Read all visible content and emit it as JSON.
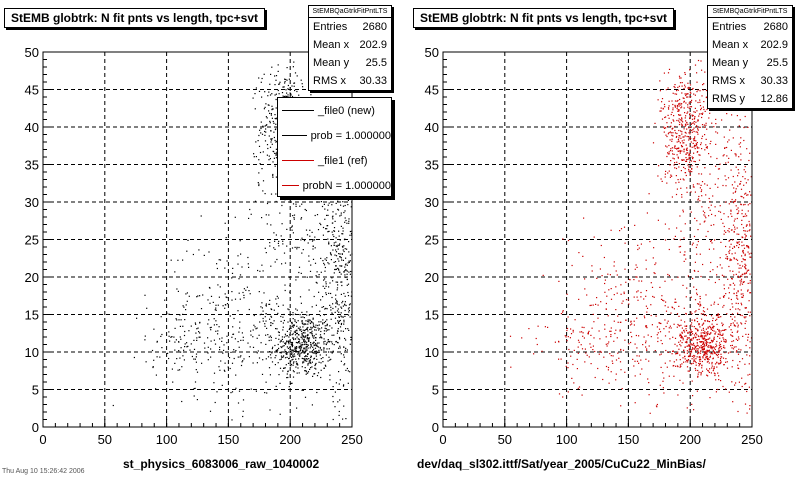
{
  "footer_note": "Thu Aug 10 15:26:42 2006",
  "chart_data": [
    {
      "type": "scatter",
      "title": "StEMB globtrk: N fit pnts vs length, tpc+svt",
      "xlabel": "st_physics_6083006_raw_1040002",
      "ylabel": "",
      "xlim": [
        0,
        250
      ],
      "ylim": [
        0,
        50
      ],
      "x_ticks": [
        "0",
        "50",
        "100",
        "150",
        "200",
        "250"
      ],
      "y_ticks": [
        "0",
        "5",
        "10",
        "15",
        "20",
        "25",
        "30",
        "35",
        "40",
        "45",
        "50"
      ],
      "grid": true,
      "marker_color": "#000000",
      "stats": {
        "name": "StEMBQaGtrkFitPntLTS",
        "rows": [
          {
            "label": "Entries",
            "value": "2680"
          },
          {
            "label": "Mean x",
            "value": "202.9"
          },
          {
            "label": "Mean y",
            "value": "25.5"
          },
          {
            "label": "RMS x",
            "value": "30.33"
          }
        ]
      },
      "legend": [
        {
          "label": "_file0 (new)",
          "color": "#000000"
        },
        {
          "label": "prob = 1.000000",
          "color": "#000000"
        },
        {
          "label": "_file1 (ref)",
          "color": "#cc0000"
        },
        {
          "label": "probN = 1.000000",
          "color": "#cc0000"
        }
      ],
      "clusters": [
        {
          "cx": 210,
          "cy": 11,
          "sx": 12,
          "sy": 2.2,
          "n": 520
        },
        {
          "cx": 195,
          "cy": 40,
          "sx": 10,
          "sy": 4,
          "n": 420
        },
        {
          "cx": 240,
          "cy": 22,
          "sx": 7,
          "sy": 9,
          "n": 380
        },
        {
          "cx": 160,
          "cy": 14,
          "sx": 35,
          "sy": 6,
          "n": 360
        },
        {
          "cx": 215,
          "cy": 30,
          "sx": 20,
          "sy": 8,
          "n": 260
        },
        {
          "cx": 120,
          "cy": 11,
          "sx": 20,
          "sy": 2,
          "n": 80
        }
      ]
    },
    {
      "type": "scatter",
      "title": "StEMB globtrk: N fit pnts vs length, tpc+svt",
      "xlabel": "dev/daq_sl302.ittf/Sat/year_2005/CuCu22_MinBias/",
      "ylabel": "",
      "xlim": [
        0,
        250
      ],
      "ylim": [
        0,
        50
      ],
      "x_ticks": [
        "0",
        "50",
        "100",
        "150",
        "200",
        "250"
      ],
      "y_ticks": [
        "0",
        "5",
        "10",
        "15",
        "20",
        "25",
        "30",
        "35",
        "40",
        "45",
        "50"
      ],
      "grid": true,
      "marker_color": "#cc0000",
      "stats": {
        "name": "StEMBQaGtrkFitPntLTS",
        "rows": [
          {
            "label": "Entries",
            "value": "2680"
          },
          {
            "label": "Mean x",
            "value": "202.9"
          },
          {
            "label": "Mean y",
            "value": "25.5"
          },
          {
            "label": "RMS x",
            "value": "30.33"
          },
          {
            "label": "RMS y",
            "value": "12.86"
          }
        ]
      },
      "clusters": [
        {
          "cx": 210,
          "cy": 11,
          "sx": 12,
          "sy": 2.2,
          "n": 520
        },
        {
          "cx": 195,
          "cy": 40,
          "sx": 10,
          "sy": 4,
          "n": 420
        },
        {
          "cx": 240,
          "cy": 22,
          "sx": 7,
          "sy": 9,
          "n": 380
        },
        {
          "cx": 160,
          "cy": 14,
          "sx": 35,
          "sy": 6,
          "n": 360
        },
        {
          "cx": 215,
          "cy": 30,
          "sx": 20,
          "sy": 8,
          "n": 260
        },
        {
          "cx": 120,
          "cy": 11,
          "sx": 20,
          "sy": 2,
          "n": 80
        }
      ]
    }
  ]
}
